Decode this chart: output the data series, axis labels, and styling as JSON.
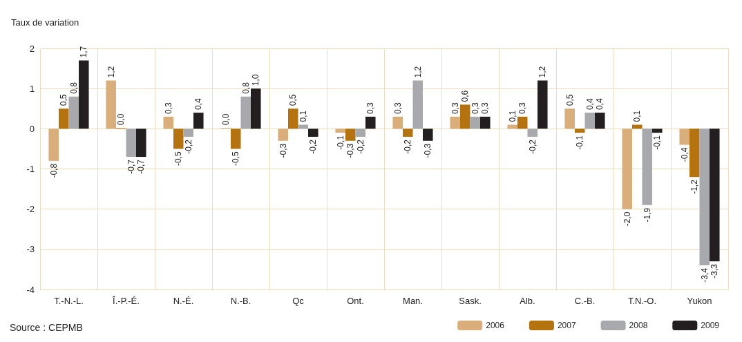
{
  "chart_data": {
    "type": "bar",
    "ylabel": "Taux de variation",
    "annotations": [
      "Source : CEPMB"
    ],
    "categories": [
      "T.-N.-L.",
      "Î.-P.-É.",
      "N.-É.",
      "N.-B.",
      "Qc",
      "Ont.",
      "Man.",
      "Sask.",
      "Alb.",
      "C.-B.",
      "T.N.-O.",
      "Yukon"
    ],
    "ylim": [
      -4,
      2
    ],
    "yticks": [
      -4,
      -3,
      -2,
      -1,
      0,
      1,
      2
    ],
    "grid": true,
    "legend": "bottom right",
    "series": [
      {
        "name": "2006",
        "color": "#d9ae7a",
        "values": [
          -0.8,
          1.2,
          0.3,
          0.0,
          -0.3,
          -0.1,
          0.3,
          0.3,
          0.1,
          0.5,
          -2.0,
          -0.4
        ],
        "value_labels": [
          "-0,8",
          "1,2",
          "0,3",
          "0,0",
          "-0,3",
          "-0,1",
          "0,3",
          "0,3",
          "0,1",
          "0,5",
          "-2,0",
          "-0,4"
        ]
      },
      {
        "name": "2007",
        "color": "#b5730f",
        "values": [
          0.5,
          0.0,
          -0.5,
          -0.5,
          0.5,
          -0.3,
          -0.2,
          0.6,
          0.3,
          -0.1,
          0.1,
          -1.2
        ],
        "value_labels": [
          "0,5",
          "0,0",
          "-0,5",
          "-0,5",
          "0,5",
          "-0,3",
          "-0,2",
          "0,6",
          "0,3",
          "-0,1",
          "0,1",
          "-1,2"
        ]
      },
      {
        "name": "2008",
        "color": "#a7a9ac",
        "values": [
          0.8,
          -0.7,
          -0.2,
          0.8,
          0.1,
          -0.2,
          1.2,
          0.3,
          -0.2,
          0.4,
          -1.9,
          -3.4
        ],
        "value_labels": [
          "0,8",
          "-0,7",
          "-0,2",
          "0,8",
          "0,1",
          "-0,2",
          "1,2",
          "0,3",
          "-0,2",
          "0,4",
          "-1,9",
          "-3,4"
        ]
      },
      {
        "name": "2009",
        "color": "#231f20",
        "values": [
          1.7,
          -0.7,
          0.4,
          1.0,
          -0.2,
          0.3,
          -0.3,
          0.3,
          1.2,
          0.4,
          -0.1,
          -3.3
        ],
        "value_labels": [
          "1,7",
          "-0,7",
          "0,4",
          "1,0",
          "-0,2",
          "0,3",
          "-0,3",
          "0,3",
          "1,2",
          "0,4",
          "-0,1",
          "-3,3"
        ]
      }
    ]
  }
}
